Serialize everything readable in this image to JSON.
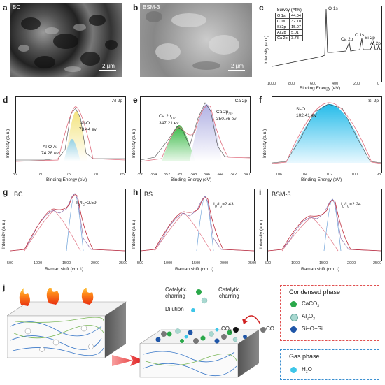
{
  "panels": {
    "a": {
      "label": "a",
      "tag": "BC",
      "scale": "2 μm"
    },
    "b": {
      "label": "b",
      "tag": "BSM-3",
      "scale": "2 μm"
    },
    "c": {
      "label": "c",
      "survey_title": "Survey (At%)",
      "survey_rows": [
        {
          "el": "O 1s",
          "val": "44.04"
        },
        {
          "el": "C 1s",
          "val": "32.10"
        },
        {
          "el": "Si 2p",
          "val": "15.07"
        },
        {
          "el": "Al 2p",
          "val": "5.01"
        },
        {
          "el": "Ca 2p",
          "val": "3.78"
        }
      ],
      "peaks": [
        "O 1s",
        "C 1s",
        "Ca 2p",
        "Si 2p",
        "Al 2p"
      ],
      "xlabel": "Binding Energy (eV)",
      "ylabel": "Intensity (a.u.)",
      "xticks": [
        "1000",
        "800",
        "600",
        "400",
        "200",
        "0"
      ]
    },
    "d": {
      "label": "d",
      "corner": "Al 2p",
      "ann1": "Al-O",
      "ann1b": "73.44 ev",
      "ann2": "Al-O-Al",
      "ann2b": "74.28 ev",
      "xlabel": "Binding Energy (eV)",
      "ylabel": "Intensity (a.u.)",
      "xticks": [
        "85",
        "80",
        "75",
        "70",
        "65"
      ]
    },
    "e": {
      "label": "e",
      "corner": "Ca 2p",
      "ann1": "Ca 2p",
      "ann1sub": "1/2",
      "ann1b": "347.21 ev",
      "ann2": "Ca 2p",
      "ann2sub": "3/2",
      "ann2b": "350.76 ev",
      "xlabel": "Binding Energy (eV)",
      "ylabel": "Intensity (a.u.)",
      "xticks": [
        "356",
        "354",
        "352",
        "350",
        "348",
        "346",
        "344",
        "342",
        "340"
      ]
    },
    "f": {
      "label": "f",
      "corner": "Si 2p",
      "ann1": "Si-O",
      "ann1b": "102.41 eV",
      "xlabel": "Binding Energy (eV)",
      "ylabel": "Intensity (a.u.)",
      "xticks": [
        "106",
        "104",
        "102",
        "100",
        "98"
      ]
    },
    "g": {
      "label": "g",
      "tag": "BC",
      "ratio": "I",
      "ratio_d": "D",
      "ratio_g": "G",
      "ratio_val": "=2.59",
      "xlabel": "Raman shift (cm⁻¹)",
      "ylabel": "Intensity (a.u.)",
      "xticks": [
        "500",
        "1000",
        "1500",
        "2000",
        "2500"
      ]
    },
    "h": {
      "label": "h",
      "tag": "BS",
      "ratio": "I",
      "ratio_d": "D",
      "ratio_g": "G",
      "ratio_val": "=2.43",
      "xlabel": "Raman shift (cm⁻¹)",
      "ylabel": "Intensity (a.u.)",
      "xticks": [
        "500",
        "1000",
        "1500",
        "2000",
        "2500"
      ]
    },
    "i": {
      "label": "i",
      "tag": "BSM-3",
      "ratio": "I",
      "ratio_d": "D",
      "ratio_g": "G",
      "ratio_val": "=2.24",
      "xlabel": "Raman shift (cm⁻¹)",
      "ylabel": "Intensity (a.u.)",
      "xticks": [
        "500",
        "1000",
        "1500",
        "2000",
        "2500"
      ]
    },
    "j": {
      "label": "j",
      "catalytic": "Catalytic",
      "charring": "charring",
      "dilution": "Dilution",
      "cat2": "Catalytic",
      "char2": "charring",
      "co2": "CO",
      "co2sub": "2",
      "co": "CO",
      "condensed_title": "Condensed phase",
      "condensed_items": [
        {
          "name": "CaCO",
          "sub": "3"
        },
        {
          "name": "Al",
          "sub": "2",
          "name2": "O",
          "sub2": "3"
        },
        {
          "name": "Si−O−Si"
        }
      ],
      "gas_title": "Gas phase",
      "gas_item": {
        "name": "H",
        "sub": "2",
        "name2": "O"
      }
    }
  },
  "colors": {
    "condensed_border": "#e05050",
    "gas_border": "#3b8fd0",
    "caco3": "#2aa84a",
    "al2o3": "#a8d8d0",
    "sio": "#1f56a8",
    "h2o": "#3ec6e8"
  }
}
